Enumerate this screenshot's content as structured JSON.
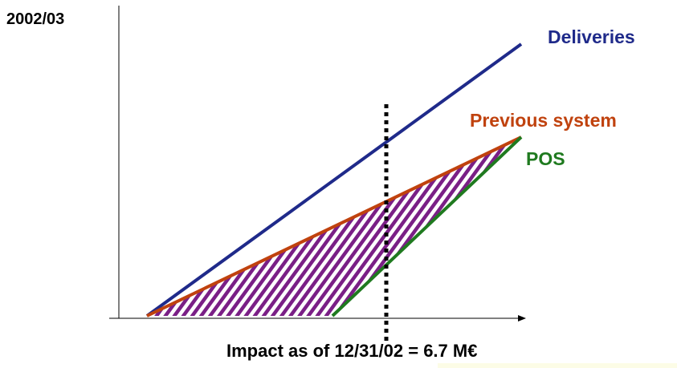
{
  "header": {
    "year_label": "2002/03"
  },
  "series": [
    {
      "id": "deliveries",
      "label": "Deliveries",
      "color": "#1f2a8a"
    },
    {
      "id": "previous_system",
      "label": "Previous system",
      "color": "#c0420e"
    },
    {
      "id": "pos",
      "label": "POS",
      "color": "#1f7a1f"
    }
  ],
  "impact": {
    "label": "Impact as of 12/31/02 = 6.7 M€",
    "hatch_color": "#7a1f86",
    "strip_color": "#fcfce6"
  },
  "axes": {
    "color": "#000000"
  }
}
